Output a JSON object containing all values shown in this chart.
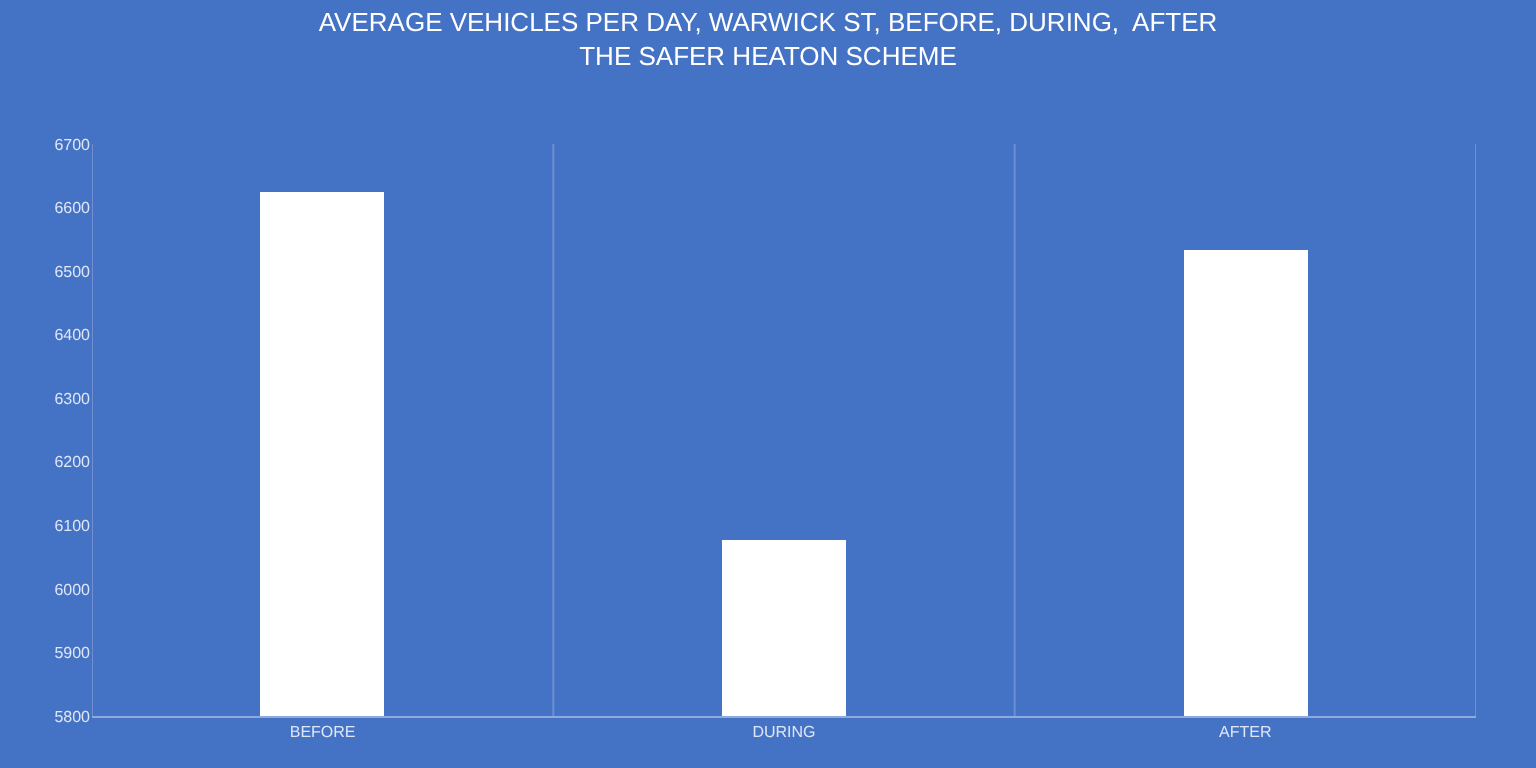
{
  "chart_data": {
    "type": "bar",
    "title": "AVERAGE VEHICLES PER DAY, WARWICK ST, BEFORE, DURING,  AFTER\nTHE SAFER HEATON SCHEME",
    "categories": [
      "BEFORE",
      "DURING",
      "AFTER"
    ],
    "values": [
      6623,
      6076,
      6533
    ],
    "color": "#ffffff",
    "ylim": [
      5800,
      6700
    ],
    "yticks": [
      5800,
      5900,
      6000,
      6100,
      6200,
      6300,
      6400,
      6500,
      6600,
      6700
    ],
    "grid": "x"
  }
}
